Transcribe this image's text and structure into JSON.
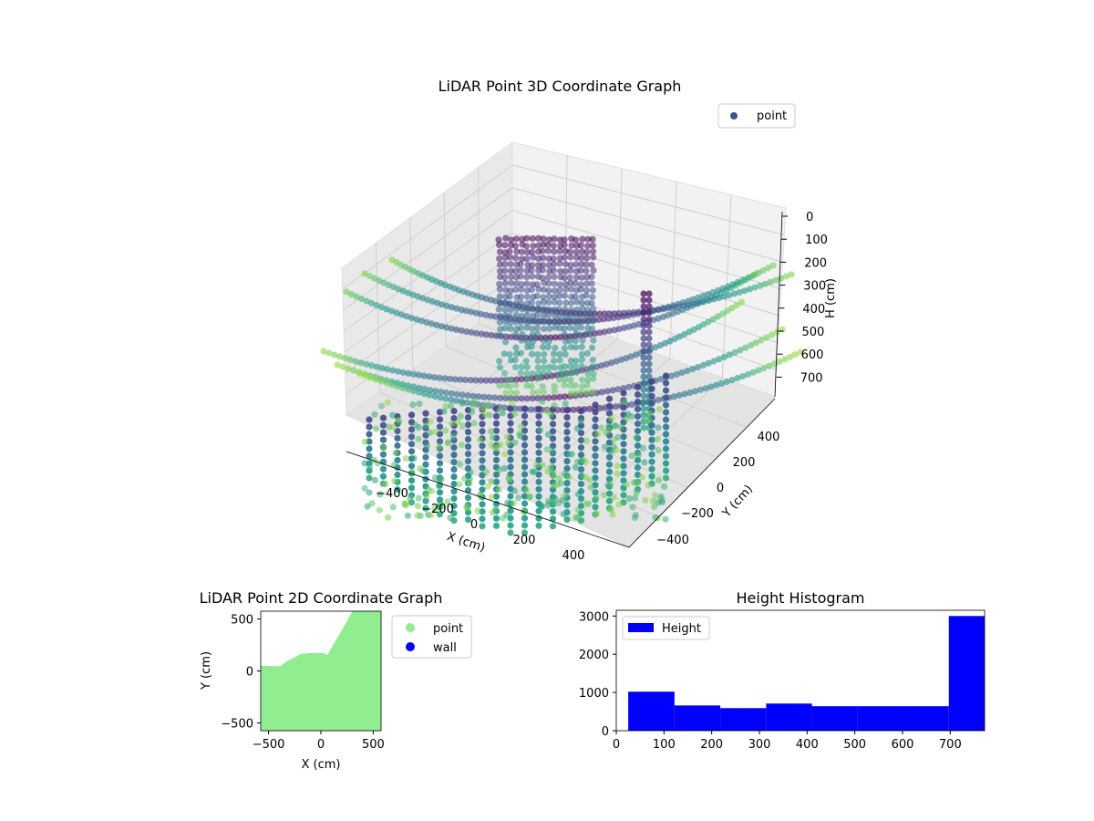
{
  "chart_data": [
    {
      "type": "scatter",
      "id": "lidar-3d",
      "title": "LiDAR Point 3D Coordinate Graph",
      "xlabel": "X (cm)",
      "ylabel": "Y (cm)",
      "zlabel": "H (cm)",
      "x_ticks": [
        "−400",
        "−200",
        "0",
        "200",
        "400"
      ],
      "y_ticks": [
        "−400",
        "−200",
        "0",
        "200",
        "400"
      ],
      "z_ticks": [
        "0",
        "100",
        "200",
        "300",
        "400",
        "500",
        "600",
        "700"
      ],
      "xlim": [
        -550,
        550
      ],
      "ylim": [
        -550,
        550
      ],
      "zlim": [
        0,
        780
      ],
      "z_inverted": true,
      "legend": [
        {
          "label": "point",
          "color": "#3b528b"
        }
      ],
      "legend_position": "top-right",
      "colormap": "viridis",
      "grid": true
    },
    {
      "type": "scatter",
      "id": "lidar-2d",
      "title": "LiDAR Point 2D Coordinate Graph",
      "xlabel": "X (cm)",
      "ylabel": "Y (cm)",
      "x_ticks": [
        -500,
        0,
        500
      ],
      "y_ticks": [
        -500,
        0,
        500
      ],
      "xlim": [
        -575,
        575
      ],
      "ylim": [
        -575,
        575
      ],
      "legend": [
        {
          "label": "point",
          "color": "#90ee90"
        },
        {
          "label": "wall",
          "color": "#0000ff"
        }
      ],
      "legend_position": "outside-right",
      "point_region": [
        [
          -575,
          50
        ],
        [
          -390,
          45
        ],
        [
          -330,
          90
        ],
        [
          -190,
          165
        ],
        [
          -60,
          175
        ],
        [
          40,
          170
        ],
        [
          60,
          150
        ],
        [
          250,
          480
        ],
        [
          300,
          575
        ],
        [
          575,
          575
        ],
        [
          575,
          -200
        ],
        [
          510,
          -200
        ],
        [
          510,
          -50
        ],
        [
          420,
          -50
        ],
        [
          575,
          -10
        ],
        [
          575,
          -575
        ],
        [
          -575,
          -575
        ]
      ]
    },
    {
      "type": "bar",
      "id": "height-histogram",
      "title": "Height Histogram",
      "legend": [
        {
          "label": "Height",
          "color": "#0000ff"
        }
      ],
      "legend_position": "top-left",
      "bin_edges": [
        25,
        122,
        218,
        314,
        410,
        505,
        600,
        697,
        772
      ],
      "values": [
        1020,
        660,
        590,
        710,
        640,
        640,
        640,
        3000
      ],
      "x_ticks": [
        0,
        100,
        200,
        300,
        400,
        500,
        600,
        700
      ],
      "y_ticks": [
        0,
        1000,
        2000,
        3000
      ],
      "xlim": [
        0,
        772
      ],
      "ylim": [
        0,
        3150
      ]
    }
  ]
}
